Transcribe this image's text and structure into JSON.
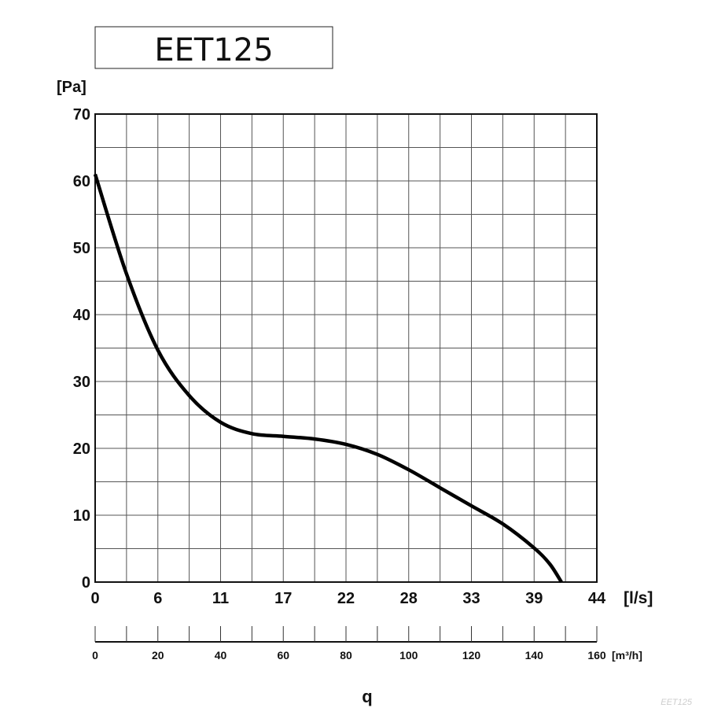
{
  "chart_data": {
    "type": "line",
    "title": "EET125",
    "ylabel": "[Pa]",
    "xlabel": "q",
    "x_unit_primary": "[l/s]",
    "x_unit_secondary": "[m³/h]",
    "watermark": "EET125",
    "ylim": [
      0,
      70
    ],
    "xlim_m3h": [
      0,
      160
    ],
    "grid": true,
    "y_ticks": [
      "0",
      "10",
      "20",
      "30",
      "40",
      "50",
      "60",
      "70"
    ],
    "x_ticks_ls": [
      "0",
      "6",
      "11",
      "17",
      "22",
      "28",
      "33",
      "39",
      "44"
    ],
    "x_ticks_m3h": [
      "0",
      "20",
      "40",
      "60",
      "80",
      "100",
      "120",
      "140",
      "160"
    ],
    "series": [
      {
        "x_m3h": [
          0,
          10,
          20,
          30,
          40,
          50,
          60,
          70,
          80,
          90,
          100,
          110,
          120,
          130,
          140,
          145,
          148.7
        ],
        "y_pa": [
          61,
          46.1,
          34.7,
          27.9,
          23.9,
          22.2,
          21.8,
          21.4,
          20.6,
          19.1,
          16.8,
          14.1,
          11.4,
          8.7,
          5.1,
          2.7,
          0
        ]
      }
    ],
    "colors": {
      "line": "#000000",
      "grid": "#555555"
    }
  }
}
